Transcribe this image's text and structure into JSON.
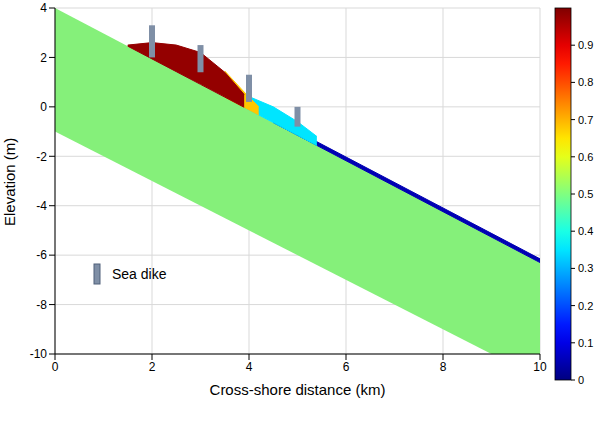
{
  "chart_data": {
    "type": "area",
    "x_label": "Cross-shore distance (km)",
    "y_label": "Elevation (m)",
    "xlim": [
      0,
      10
    ],
    "xticks": [
      0,
      2,
      4,
      6,
      8,
      10
    ],
    "ylim": [
      -10,
      4
    ],
    "yticks": [
      -10,
      -8,
      -6,
      -4,
      -2,
      0,
      2,
      4
    ],
    "grid": true,
    "legend": "lower left",
    "bed": {
      "color": "#85f07a",
      "x": [
        0,
        10
      ],
      "bottom": [
        -1,
        -11
      ],
      "top": [
        4,
        -6.3
      ]
    },
    "layers": [
      {
        "value": 0.05,
        "x": [
          4.5,
          6,
          8,
          10
        ],
        "bottom": [
          -0.635,
          -2.18,
          -4.24,
          -6.3
        ],
        "top": [
          -0.485,
          -2.03,
          -4.09,
          -6.15
        ]
      },
      {
        "value": 0.35,
        "x": [
          3.9,
          4.5,
          5.0,
          5.4
        ],
        "bottom": [
          -0.017,
          -0.635,
          -1.15,
          -1.562
        ],
        "top": [
          0.5,
          0.0,
          -0.6,
          -1.2
        ]
      },
      {
        "value": 0.68,
        "x": [
          3.5,
          3.9,
          4.2
        ],
        "bottom": [
          0.395,
          -0.017,
          -0.326
        ],
        "top": [
          1.45,
          0.6,
          0.0
        ]
      },
      {
        "value": 0.98,
        "x": [
          1.5,
          2,
          2.5,
          3,
          3.5,
          3.9
        ],
        "bottom": [
          2.455,
          1.94,
          1.425,
          0.91,
          0.395,
          -0.017
        ],
        "top": [
          2.5,
          2.6,
          2.5,
          2.2,
          1.4,
          0.5
        ]
      }
    ],
    "series": [
      {
        "name": "Sea dike",
        "color": "#7f8fa6",
        "x": [
          2,
          3,
          4,
          5
        ],
        "bottom": [
          2.0,
          1.4,
          0.2,
          -0.8
        ],
        "top": [
          3.3,
          2.5,
          1.3,
          0.0
        ]
      }
    ],
    "colorbar": {
      "range": [
        0,
        1
      ],
      "ticks": [
        0,
        0.1,
        0.2,
        0.3,
        0.4,
        0.5,
        0.6,
        0.7,
        0.8,
        0.9
      ]
    }
  }
}
